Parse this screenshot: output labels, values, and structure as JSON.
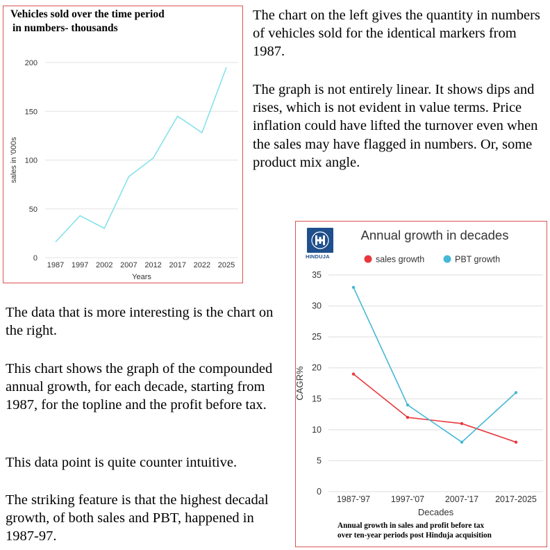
{
  "left_chart_title_line1": "Vehicles sold over the time period",
  "left_chart_title_line2": "in numbers- thousands",
  "right_chart_title": "Annual growth in decades",
  "logo_text": "HINDUJA",
  "caption_line1": "Annual growth in sales and profit before tax",
  "caption_line2": "over ten-year periods post Hinduja acquisition",
  "paragraphs": {
    "right_1": "The chart on the left gives the quantity in numbers of vehicles sold for the identical markers from 1987.",
    "right_2": "The graph is not entirely linear. It shows dips and rises, which is not evident in value terms. Price inflation could have lifted the turnover even when the sales may have flagged in numbers. Or, some product mix angle.",
    "left_1": "The data that is more interesting is the chart on the right.",
    "left_2": "This chart shows the graph of the compounded annual growth, for each decade, starting from 1987, for the topline and the profit before tax.",
    "left_3": "This data point is quite counter intuitive.",
    "left_4": "The striking feature is that the highest decadal growth, of both sales and PBT, happened in 1987-97."
  },
  "chart_data": [
    {
      "type": "line",
      "title": "Vehicles sold over the time period in numbers- thousands",
      "xlabel": "Years",
      "ylabel": "sales in '000s",
      "categories": [
        "1987",
        "1997",
        "2002",
        "2007",
        "2012",
        "2017",
        "2022",
        "2025"
      ],
      "series": [
        {
          "name": "sales",
          "values": [
            16,
            43,
            30,
            83,
            102,
            145,
            128,
            195
          ],
          "color": "#7fe0ea"
        }
      ],
      "ylim": [
        0,
        200
      ],
      "yticks": [
        0,
        50,
        100,
        150,
        200
      ],
      "grid": true
    },
    {
      "type": "line",
      "title": "Annual growth in decades",
      "xlabel": "Decades",
      "ylabel": "CAGR%",
      "categories": [
        "1987-'97",
        "1997-'07",
        "2007-'17",
        "2017-2025"
      ],
      "series": [
        {
          "name": "sales growth",
          "values": [
            19,
            12,
            11,
            8
          ],
          "color": "#e8383d"
        },
        {
          "name": "PBT growth",
          "values": [
            33,
            14,
            8,
            16
          ],
          "color": "#45b8d5"
        }
      ],
      "ylim": [
        0,
        35
      ],
      "yticks": [
        0,
        5,
        10,
        15,
        20,
        25,
        30,
        35
      ],
      "grid": true,
      "legend": "top-center"
    }
  ]
}
